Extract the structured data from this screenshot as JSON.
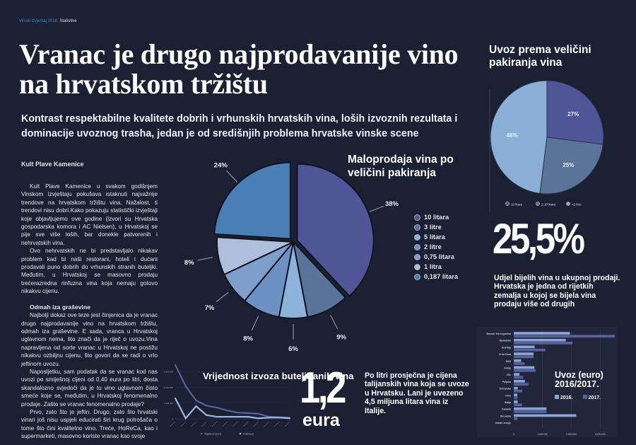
{
  "breadcrumb": {
    "section": "Vinski izvještaj 2018.",
    "subsection": "Statistike"
  },
  "article": {
    "title": "Vranac je drugo najprodavanije vino na hrvatskom tržištu",
    "subtitle": "Kontrast respektabilne kvalitete dobrih i vrhunskih hrvatskih vina, loših izvoznih rezultata i dominacije uvoznog trasha, jedan je od središnjih problema hrvatske vinske scene",
    "kicker": "Kult Plave Kamenice",
    "paragraphs": [
      "Kult Plave Kamenice u svakom godišnjem Vinskom izvještaju pokušava istaknuti najvažnije trendove na hrvatskom tržištu vina. Nažalost, ti trendovi nisu dobri.Kako pokazuju statistički izvještaji koje objavljujemo ove godine (izvori su Hrvatska gospodarska komora i AC Nielsen), u Hrvatskoj se pije sve više loših, bar donekle patvorenih i nehrvatskih vina.",
      "Ovo nehrvatskih ne bi predstavljalo nikakav problem kad bi naši restorani, hoteli i dućani prodavali puno dobrih do vrhunskih stranih butelјki. Međutim, u Hrvatskoj se masovno prodaju trećerazredna rinfuzna vina koja nemaju gotovo nikakvu cijenu."
    ],
    "subheading": "Odmah iza graševine",
    "paragraphs2": [
      "Najbolji dokaz ove teze jest činjenica da je vranac drugo najprodavanije vino na hrvatskom tržištu, odmah iza graševine. E sada, vranca u Hrvatskoj uglavnom nema, što znači da je riječ o uvozu.Vina napravljena od sorte vranac u Hrvatskoj ne postižu nikakvu ozbiljnu cijenu, što govori da se radi o vrlo jeftinom uvozu.",
      "Naposljetku, sam podatak da se vranac kod nas uvozi po smiješnoj cijeni od 0,40 eura po litri, dosta skandalozno svjedoči da je to vino uglavnom čisto smeće koje se, međutim, u Hrvatskoj fenomenalno prodaje. Zašto se vranac fenomenalno prodaje?",
      "Prvo, zato što je jeftin. Drugo, zato što hrvatski vinari još nisu uspjeli educirati širi krug potrošača o tome što čini kvalitetno vino. Treće, HoReCa, kao i supermarketi, masovno koriste vranac kao svoje"
    ]
  },
  "facts": {
    "white_share": "25,5%",
    "white_share_text": "Udjel bijelih vina u ukupnoj prodaji. Hrvatska je jedna od rijetkih zemalja u kojoj se bijela vina prodaju više od drugih",
    "price_value": "1,2",
    "price_unit": "eura",
    "price_text": "Po litri prosječna je cijena talijanskih vina koja se uvoze u Hrvatsku. Lani je uvezeno 4,5 miljuna litara vina iz Italije."
  },
  "chart_data": [
    {
      "type": "pie",
      "title": "Maloprodaja vina po veličini pakiranja",
      "legend": "right",
      "categories": [
        "10 litara",
        "3 litre",
        "5 litara",
        "2 litre",
        "0,75 litara",
        "1 litra",
        "0,187 litara"
      ],
      "values": [
        38,
        9,
        6,
        8,
        7,
        8,
        24
      ],
      "labels": [
        "38%",
        "9%",
        "6%",
        "8%",
        "7%",
        "8%",
        "24%"
      ],
      "colors": [
        "#4f5596",
        "#5a7399",
        "#8db2db",
        "#6d91c2",
        "#7e9ecb",
        "#aebfdc",
        "#4a7fb6"
      ]
    },
    {
      "type": "pie",
      "title": "Uvoz prema veličini pakiranja vina",
      "legend": "bottom",
      "categories": [
        "10 litara",
        "2-10 litara",
        "<2 litre"
      ],
      "values": [
        27,
        25,
        48
      ],
      "labels": [
        "27%",
        "25%",
        "48%"
      ],
      "colors": [
        "#4f5596",
        "#5b7399",
        "#8aaed6"
      ]
    },
    {
      "type": "line",
      "title": "Vrijednost izvoza buteljiranih vina",
      "legend": "bottom",
      "ylim": [
        0,
        3000000
      ],
      "yticks": [
        "0",
        "1.000.000",
        "2.000.000",
        "3.000.000"
      ],
      "grid": true,
      "series": [
        {
          "name": "Vrijednost (euro)",
          "color": "#5a5f9e",
          "values": [
            3200000,
            1940000,
            1090000,
            780000,
            670000,
            490000,
            370000,
            340000,
            300000,
            120000,
            100000,
            70000
          ]
        },
        {
          "name": "Količina (l)",
          "color": "#9db8e0",
          "values": [
            1220000,
            30000,
            750000,
            220000,
            120000,
            120000,
            120000,
            120000,
            30000,
            70000,
            70000,
            30000
          ]
        }
      ]
    },
    {
      "type": "bar",
      "orientation": "horizontal",
      "title": "Uvoz (euro) 2016/2017.",
      "legend": "inside",
      "categories": [
        "Bosna i Hercegovina",
        "Njemačka",
        "Austrija",
        "Crna Gora",
        "SAD",
        "Srbija",
        "Čile",
        "Poljska",
        "Švicarska",
        "Kina",
        "Italija",
        "Kanada",
        "Slovačka",
        "Ostale zemlje"
      ],
      "xlim": [
        0,
        3500000
      ],
      "xticks": [
        "0",
        "1.000.000",
        "2.000.000",
        "3.000.000"
      ],
      "grid": true,
      "series": [
        {
          "name": "2016.",
          "color": "#8aa6d6",
          "values": [
            1950000,
            1810000,
            730000,
            690000,
            260000,
            720000,
            200000,
            390000,
            140000,
            130000,
            140000,
            1140000,
            2170000,
            0
          ]
        },
        {
          "name": "2017.",
          "color": "#5a5f9e",
          "values": [
            3510000,
            2040000,
            1100000,
            690000,
            380000,
            760000,
            330000,
            510000,
            300000,
            130000,
            290000,
            1140000,
            130000,
            0
          ]
        }
      ]
    }
  ]
}
